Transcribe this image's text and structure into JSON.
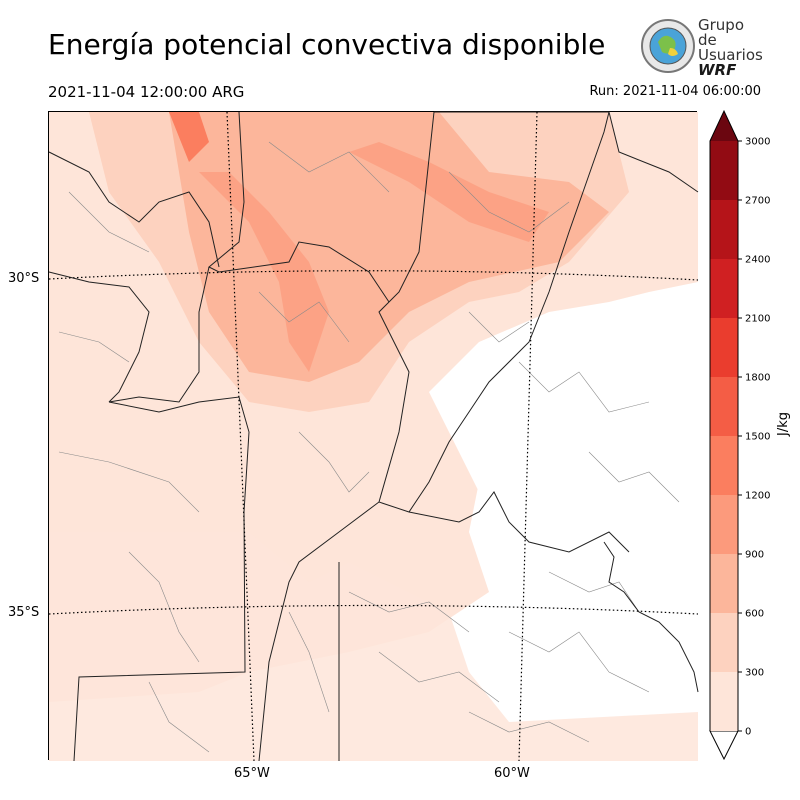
{
  "header": {
    "title": "Energía potencial convectiva disponible",
    "valid_time": "2021-11-04 12:00:00 ARG",
    "run_time": "Run: 2021-11-04 06:00:00"
  },
  "logo": {
    "lines": [
      "Grupo de",
      "Usuarios",
      "WRF"
    ],
    "icon": "globe-seal-icon"
  },
  "map": {
    "lat_labels": [
      "30°S",
      "35°S"
    ],
    "lon_labels": [
      "65°W",
      "60°W"
    ]
  },
  "colorbar": {
    "unit": "J/kg",
    "ticks": [
      "0",
      "300",
      "600",
      "900",
      "1200",
      "1500",
      "1800",
      "2100",
      "2400",
      "2700",
      "3000"
    ],
    "colors": [
      "#fee5d9",
      "#fdd2bf",
      "#fcb69b",
      "#fc9a7c",
      "#fb7e5f",
      "#f45d45",
      "#ea3d2e",
      "#d02022",
      "#b51419",
      "#920b13",
      "#6b0610"
    ],
    "extend": "max"
  }
}
